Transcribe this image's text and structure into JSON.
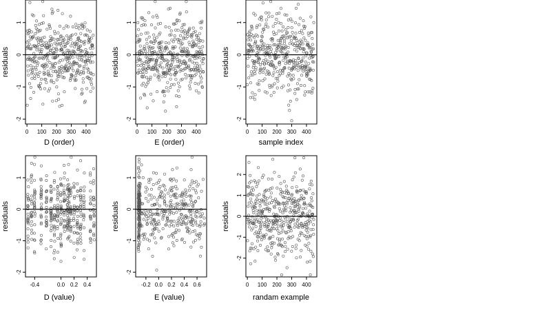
{
  "chart_data": [
    {
      "type": "scatter",
      "xlabel": "D (order)",
      "ylabel": "residuals",
      "xlim": [
        -10,
        470
      ],
      "ylim": [
        -2.15,
        1.7
      ],
      "xticks": [
        0,
        100,
        200,
        300,
        400
      ],
      "yticks": [
        -2,
        -1,
        0,
        1
      ],
      "hline": 0,
      "x_kind": "index",
      "n_points": 450,
      "y_range": [
        -2.05,
        1.65
      ],
      "y_spread": 0.62
    },
    {
      "type": "scatter",
      "xlabel": "E (order)",
      "ylabel": "residuals",
      "xlim": [
        -10,
        470
      ],
      "ylim": [
        -2.15,
        1.7
      ],
      "xticks": [
        0,
        100,
        200,
        300,
        400
      ],
      "yticks": [
        -2,
        -1,
        0,
        1
      ],
      "hline": 0,
      "x_kind": "index",
      "n_points": 450,
      "y_range": [
        -2.05,
        1.65
      ],
      "y_spread": 0.62
    },
    {
      "type": "scatter",
      "xlabel": "sample index",
      "ylabel": "residuals",
      "xlim": [
        -10,
        470
      ],
      "ylim": [
        -2.15,
        1.7
      ],
      "xticks": [
        0,
        100,
        200,
        300,
        400
      ],
      "yticks": [
        -2,
        -1,
        0,
        1
      ],
      "hline": 0,
      "x_kind": "index",
      "n_points": 450,
      "y_range": [
        -2.05,
        1.65
      ],
      "y_spread": 0.62
    },
    {
      "type": "scatter",
      "xlabel": "D (value)",
      "ylabel": "residuals",
      "xlim": [
        -0.54,
        0.54
      ],
      "ylim": [
        -2.15,
        1.7
      ],
      "xticks": [
        -0.4,
        0.0,
        0.2,
        0.4
      ],
      "xtick_labels": [
        "-0.4",
        "0.0",
        "0.2",
        "0.4"
      ],
      "yticks": [
        -2,
        -1,
        0,
        1
      ],
      "hline": 0,
      "x_kind": "clustered",
      "x_clusters": [
        -0.5,
        -0.45,
        -0.4,
        -0.3,
        -0.22,
        -0.15,
        -0.1,
        -0.05,
        0.0,
        0.05,
        0.1,
        0.12,
        0.15,
        0.2,
        0.25,
        0.3,
        0.35,
        0.45,
        0.5
      ],
      "n_points": 450,
      "y_range": [
        -2.05,
        1.65
      ],
      "y_spread": 0.62
    },
    {
      "type": "scatter",
      "xlabel": "E (value)",
      "ylabel": "residuals",
      "xlim": [
        -0.36,
        0.75
      ],
      "ylim": [
        -2.15,
        1.7
      ],
      "xticks": [
        -0.2,
        0.0,
        0.2,
        0.4,
        0.6
      ],
      "xtick_labels": [
        "-0.2",
        "0.0",
        "0.2",
        "0.4",
        "0.6"
      ],
      "yticks": [
        -2,
        -1,
        0,
        1
      ],
      "hline": 0,
      "x_kind": "skewed",
      "x_min": -0.32,
      "x_max": 0.72,
      "n_points": 450,
      "y_range": [
        -2.05,
        1.65
      ],
      "y_spread": 0.62
    },
    {
      "type": "scatter",
      "xlabel": "randam example",
      "ylabel": "residuals",
      "xlim": [
        -10,
        470
      ],
      "ylim": [
        -2.9,
        2.9
      ],
      "xticks": [
        0,
        100,
        200,
        300,
        400
      ],
      "yticks": [
        -2,
        -1,
        0,
        1,
        2
      ],
      "hline": 0,
      "x_kind": "index",
      "n_points": 450,
      "y_range": [
        -2.8,
        2.8
      ],
      "y_spread": 1.0
    }
  ]
}
